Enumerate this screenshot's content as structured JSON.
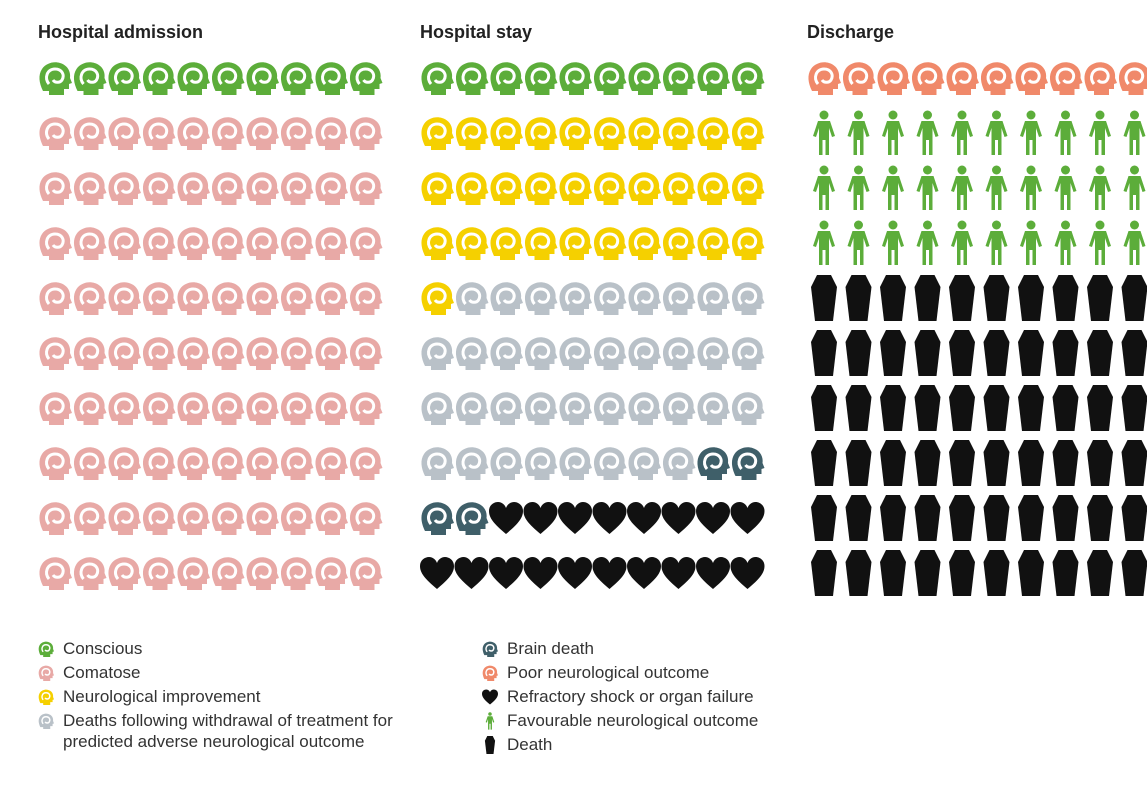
{
  "chart_data": {
    "type": "waffle",
    "series": [
      {
        "name": "Conscious",
        "color": "#5cad3a",
        "icon": "head"
      },
      {
        "name": "Comatose",
        "color": "#e8a9a6",
        "icon": "head"
      },
      {
        "name": "Neurological improvement",
        "color": "#f5d000",
        "icon": "head"
      },
      {
        "name": "Deaths following withdrawal of treatment for predicted adverse neurological outcome",
        "color": "#b9c1c8",
        "icon": "head"
      },
      {
        "name": "Brain death",
        "color": "#3f5f69",
        "icon": "head"
      },
      {
        "name": "Poor neurological outcome",
        "color": "#f0896a",
        "icon": "head"
      },
      {
        "name": "Refractory shock or organ failure",
        "color": "#111111",
        "icon": "heart"
      },
      {
        "name": "Favourable neurological outcome",
        "color": "#5cad3a",
        "icon": "person"
      },
      {
        "name": "Death",
        "color": "#111111",
        "icon": "coffin"
      }
    ],
    "panels": [
      {
        "title": "Hospital admission",
        "values": [
          10,
          90,
          0,
          0,
          0,
          0,
          0,
          0,
          0
        ]
      },
      {
        "title": "Hospital stay",
        "values": [
          10,
          0,
          31,
          37,
          4,
          0,
          18,
          0,
          0
        ]
      },
      {
        "title": "Discharge",
        "values": [
          0,
          0,
          0,
          0,
          0,
          10,
          0,
          30,
          60
        ]
      }
    ]
  }
}
